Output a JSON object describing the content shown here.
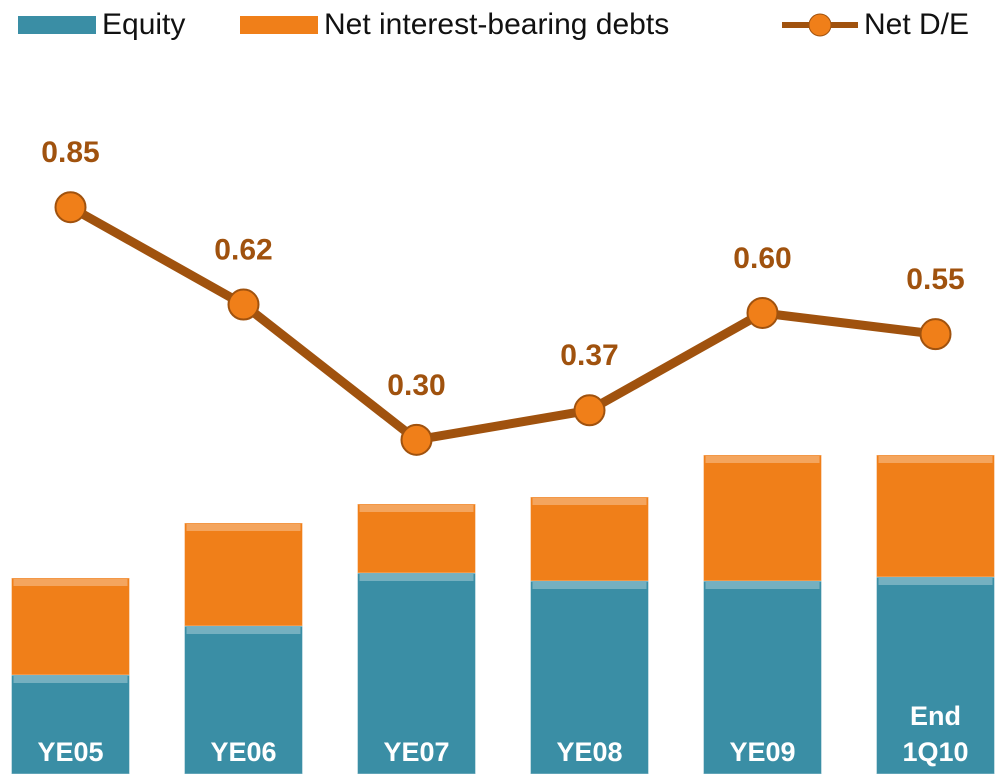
{
  "chart_data": {
    "type": "bar",
    "categories": [
      "YE05",
      "YE06",
      "YE07",
      "YE08",
      "YE09",
      "End 1Q10"
    ],
    "ylim": [
      0,
      774
    ],
    "y2lim": [
      -0.49,
      1.34
    ],
    "series": [
      {
        "name": "Equity",
        "type": "bar",
        "color": "#3a8ea5",
        "values": [
          99,
          148,
          201,
          193,
          193,
          197
        ]
      },
      {
        "name": "Net interest-bearing debts",
        "type": "bar",
        "color": "#f07f19",
        "values": [
          97,
          103,
          69,
          84,
          126,
          122
        ]
      },
      {
        "name": "Net D/E",
        "type": "line",
        "axis": "y2",
        "color": "#a0520e",
        "values": [
          0.85,
          0.62,
          0.3,
          0.37,
          0.6,
          0.55
        ],
        "value_labels": [
          "0.85",
          "0.62",
          "0.30",
          "0.37",
          "0.60",
          "0.55"
        ]
      }
    ]
  }
}
